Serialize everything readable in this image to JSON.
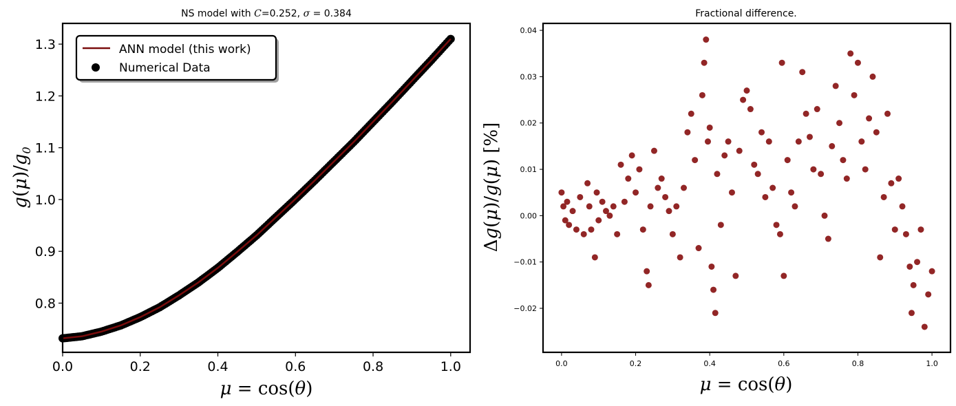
{
  "colors": {
    "line": "#7a0c0c",
    "markers": "#000000",
    "scatter": "#7f0000",
    "axes": "#000000",
    "background": "#ffffff"
  },
  "chart_data": [
    {
      "type": "line",
      "title": "NS model with C=0.252, σ = 0.384",
      "xlabel": "μ = cos(θ)",
      "ylabel": "g(μ)/g₀",
      "xlim": [
        0.0,
        1.05
      ],
      "ylim": [
        0.705,
        1.34
      ],
      "x_ticks": [
        0.0,
        0.2,
        0.4,
        0.6,
        0.8,
        1.0
      ],
      "x_tick_labels": [
        "0.0",
        "0.2",
        "0.4",
        "0.6",
        "0.8",
        "1.0"
      ],
      "y_ticks": [
        0.8,
        0.9,
        1.0,
        1.1,
        1.2,
        1.3
      ],
      "y_tick_labels": [
        "0.8",
        "0.9",
        "1.0",
        "1.1",
        "1.2",
        "1.3"
      ],
      "grid": false,
      "legend": {
        "position": "top-left",
        "entries": [
          "ANN model (this work)",
          "Numerical Data"
        ]
      },
      "series": [
        {
          "name": "ANN model (this work)",
          "kind": "line",
          "x": [
            0.0,
            0.05,
            0.1,
            0.15,
            0.2,
            0.25,
            0.3,
            0.35,
            0.4,
            0.45,
            0.5,
            0.55,
            0.6,
            0.65,
            0.7,
            0.75,
            0.8,
            0.85,
            0.9,
            0.95,
            1.0
          ],
          "y": [
            0.732,
            0.736,
            0.745,
            0.757,
            0.773,
            0.792,
            0.815,
            0.84,
            0.868,
            0.899,
            0.931,
            0.966,
            1.001,
            1.037,
            1.074,
            1.111,
            1.15,
            1.189,
            1.229,
            1.269,
            1.31
          ]
        },
        {
          "name": "Numerical Data",
          "kind": "scatter",
          "x": [
            0.0,
            0.05,
            0.1,
            0.15,
            0.2,
            0.25,
            0.3,
            0.35,
            0.4,
            0.45,
            0.5,
            0.55,
            0.6,
            0.65,
            0.7,
            0.75,
            0.8,
            0.85,
            0.9,
            0.95,
            1.0
          ],
          "y": [
            0.732,
            0.736,
            0.745,
            0.757,
            0.773,
            0.792,
            0.815,
            0.84,
            0.868,
            0.899,
            0.931,
            0.966,
            1.001,
            1.037,
            1.074,
            1.111,
            1.15,
            1.189,
            1.229,
            1.269,
            1.31
          ]
        }
      ]
    },
    {
      "type": "scatter",
      "title": "Fractional difference.",
      "xlabel": "μ = cos(θ)",
      "ylabel": "Δg(μ)/g(μ)  [%]",
      "xlim": [
        -0.05,
        1.05
      ],
      "ylim": [
        -0.0295,
        0.0415
      ],
      "x_ticks": [
        0.0,
        0.2,
        0.4,
        0.6,
        0.8,
        1.0
      ],
      "x_tick_labels": [
        "0.0",
        "0.2",
        "0.4",
        "0.6",
        "0.8",
        "1.0"
      ],
      "y_ticks": [
        -0.02,
        -0.01,
        0.0,
        0.01,
        0.02,
        0.03,
        0.04
      ],
      "y_tick_labels": [
        "−0.02",
        "−0.01",
        "0.00",
        "0.01",
        "0.02",
        "0.03",
        "0.04"
      ],
      "grid": false,
      "series": [
        {
          "x": [
            0.0,
            0.005,
            0.01,
            0.015,
            0.02,
            0.03,
            0.04,
            0.05,
            0.06,
            0.07,
            0.075,
            0.08,
            0.09,
            0.095,
            0.1,
            0.11,
            0.12,
            0.13,
            0.14,
            0.15,
            0.16,
            0.17,
            0.18,
            0.19,
            0.2,
            0.21,
            0.22,
            0.23,
            0.235,
            0.24,
            0.25,
            0.26,
            0.27,
            0.28,
            0.29,
            0.3,
            0.31,
            0.32,
            0.33,
            0.34,
            0.35,
            0.36,
            0.37,
            0.38,
            0.385,
            0.39,
            0.395,
            0.4,
            0.405,
            0.41,
            0.415,
            0.42,
            0.43,
            0.44,
            0.45,
            0.46,
            0.47,
            0.48,
            0.49,
            0.5,
            0.51,
            0.52,
            0.53,
            0.54,
            0.55,
            0.56,
            0.57,
            0.58,
            0.59,
            0.595,
            0.6,
            0.61,
            0.62,
            0.63,
            0.64,
            0.65,
            0.66,
            0.67,
            0.68,
            0.69,
            0.7,
            0.71,
            0.72,
            0.73,
            0.74,
            0.75,
            0.76,
            0.77,
            0.78,
            0.79,
            0.8,
            0.81,
            0.82,
            0.83,
            0.84,
            0.85,
            0.86,
            0.87,
            0.88,
            0.89,
            0.9,
            0.91,
            0.92,
            0.93,
            0.94,
            0.945,
            0.95,
            0.96,
            0.97,
            0.98,
            0.99,
            1.0
          ],
          "y": [
            0.005,
            0.002,
            -0.001,
            0.003,
            -0.002,
            0.001,
            -0.003,
            0.004,
            -0.004,
            0.007,
            0.002,
            -0.003,
            -0.009,
            0.005,
            -0.001,
            0.003,
            0.001,
            0.0,
            0.002,
            -0.004,
            0.011,
            0.003,
            0.008,
            0.013,
            0.005,
            0.01,
            -0.003,
            -0.012,
            -0.015,
            0.002,
            0.014,
            0.006,
            0.008,
            0.004,
            0.001,
            -0.004,
            0.002,
            -0.009,
            0.006,
            0.018,
            0.022,
            0.012,
            -0.007,
            0.026,
            0.033,
            0.038,
            0.016,
            0.019,
            -0.011,
            -0.016,
            -0.021,
            0.009,
            -0.002,
            0.013,
            0.016,
            0.005,
            -0.013,
            0.014,
            0.025,
            0.027,
            0.023,
            0.011,
            0.009,
            0.018,
            0.004,
            0.016,
            0.006,
            -0.002,
            -0.004,
            0.033,
            -0.013,
            0.012,
            0.005,
            0.002,
            0.016,
            0.031,
            0.022,
            0.017,
            0.01,
            0.023,
            0.009,
            0.0,
            -0.005,
            0.015,
            0.028,
            0.02,
            0.012,
            0.008,
            0.035,
            0.026,
            0.033,
            0.016,
            0.01,
            0.021,
            0.03,
            0.018,
            -0.009,
            0.004,
            0.022,
            0.007,
            -0.003,
            0.008,
            0.002,
            -0.004,
            -0.011,
            -0.021,
            -0.015,
            -0.01,
            -0.003,
            -0.024,
            -0.017,
            -0.012
          ]
        }
      ]
    }
  ]
}
